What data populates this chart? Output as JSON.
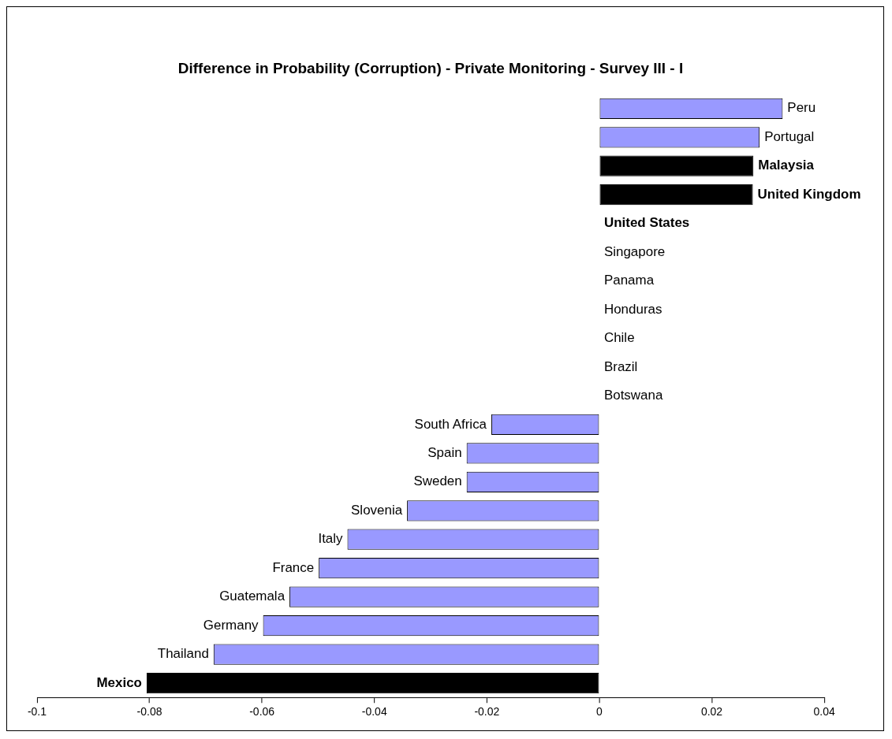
{
  "chart_data": {
    "type": "bar",
    "orientation": "horizontal",
    "title": "Difference in Probability (Corruption) - Private Monitoring - Survey III - I",
    "categories": [
      "Peru",
      "Portugal",
      "Malaysia",
      "United Kingdom",
      "United States",
      "Singapore",
      "Panama",
      "Honduras",
      "Chile",
      "Brazil",
      "Botswana",
      "South Africa",
      "Spain",
      "Sweden",
      "Slovenia",
      "Italy",
      "France",
      "Guatemala",
      "Germany",
      "Thailand",
      "Mexico"
    ],
    "values": [
      0.0326,
      0.0285,
      0.0274,
      0.0273,
      0,
      0,
      0,
      0,
      0,
      0,
      0,
      -0.0192,
      -0.0236,
      -0.0236,
      -0.0342,
      -0.0448,
      -0.0499,
      -0.0551,
      -0.0598,
      -0.0686,
      -0.0805
    ],
    "colors": [
      "#9999ff",
      "#9999ff",
      "#000000",
      "#000000",
      "#000000",
      "#9999ff",
      "#9999ff",
      "#9999ff",
      "#9999ff",
      "#9999ff",
      "#9999ff",
      "#9999ff",
      "#9999ff",
      "#9999ff",
      "#9999ff",
      "#9999ff",
      "#9999ff",
      "#9999ff",
      "#9999ff",
      "#9999ff",
      "#000000"
    ],
    "xlim": [
      -0.1,
      0.04
    ],
    "xticks": [
      -0.1,
      -0.08,
      -0.06,
      -0.04,
      -0.02,
      0,
      0.02,
      0.04
    ],
    "grid": false,
    "legend": false
  }
}
